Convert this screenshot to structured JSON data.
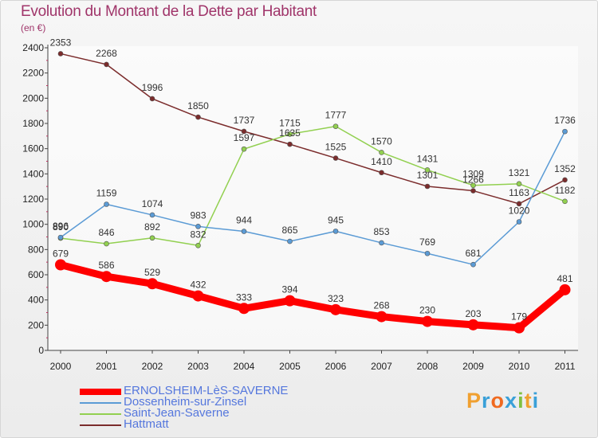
{
  "header": {
    "title": "Evolution du Montant de la Dette par Habitant",
    "unit": "(en €)"
  },
  "logo": {
    "letters": [
      "P",
      "r",
      "o",
      "x",
      "i",
      "t",
      "i"
    ],
    "colors": [
      "#f0a030",
      "#3aa0d8",
      "#f06a20",
      "#3aa0d8",
      "#80c040",
      "#f0a030",
      "#3aa0d8"
    ]
  },
  "chart_data": {
    "type": "line",
    "x": [
      "2000",
      "2001",
      "2002",
      "2003",
      "2004",
      "2005",
      "2006",
      "2007",
      "2008",
      "2009",
      "2010",
      "2011"
    ],
    "ylim": [
      0,
      2400
    ],
    "yticks": [
      0,
      200,
      400,
      600,
      800,
      1000,
      1200,
      1400,
      1600,
      1800,
      2000,
      2200,
      2400
    ],
    "grid": false,
    "legend_position": "bottom-left",
    "series": [
      {
        "name": "ERNOLSHEIM-LèS-SAVERNE",
        "color": "#ff0000",
        "values": [
          679,
          586,
          529,
          432,
          333,
          394,
          323,
          268,
          230,
          203,
          179,
          481
        ]
      },
      {
        "name": "Dossenheim-sur-Zinsel",
        "color": "#5b9bd5",
        "values": [
          896,
          1159,
          1074,
          983,
          944,
          865,
          945,
          853,
          769,
          681,
          1020,
          1736
        ]
      },
      {
        "name": "Saint-Jean-Saverne",
        "color": "#92d050",
        "values": [
          890,
          846,
          892,
          832,
          1597,
          1715,
          1777,
          1570,
          1431,
          1309,
          1321,
          1182
        ]
      },
      {
        "name": "Hattmatt",
        "color": "#7b2c2c",
        "values": [
          2353,
          2268,
          1996,
          1850,
          1737,
          1635,
          1525,
          1410,
          1301,
          1266,
          1163,
          1352
        ]
      }
    ]
  }
}
